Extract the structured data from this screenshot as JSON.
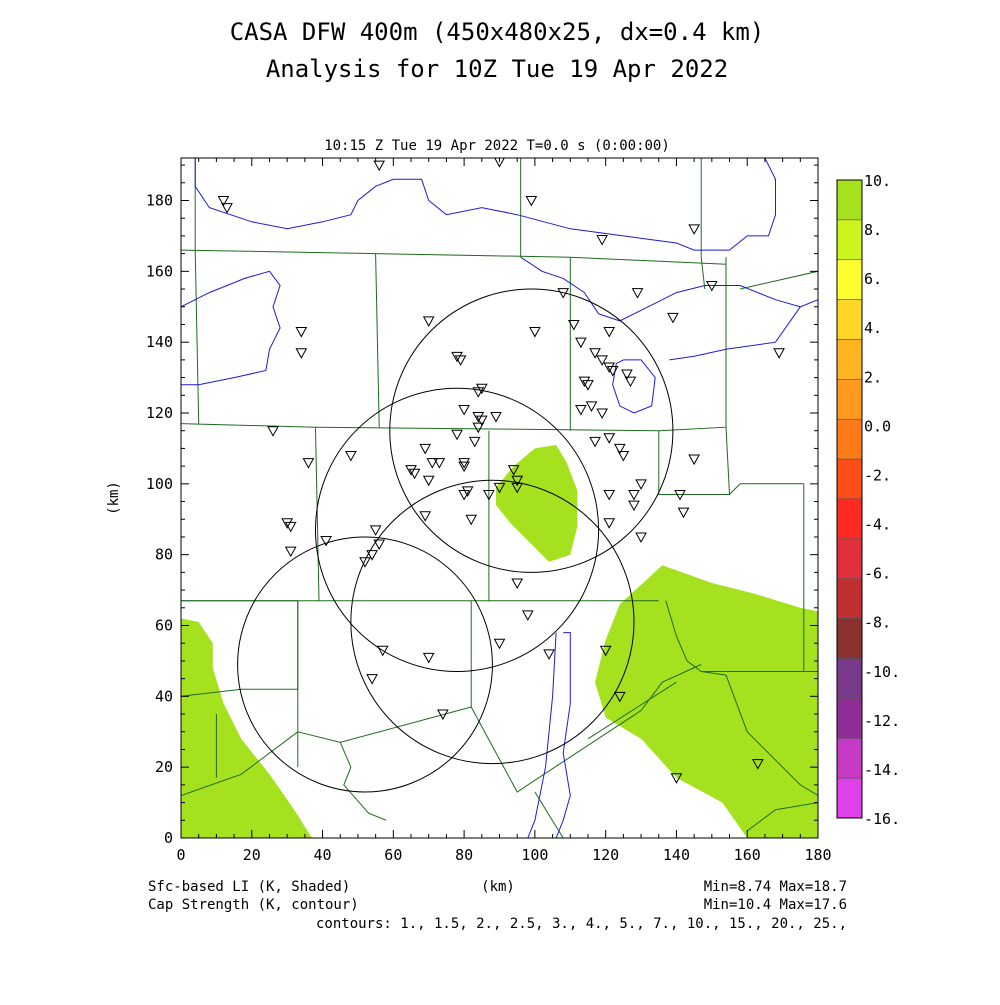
{
  "title_line1": "CASA DFW 400m (450x480x25, dx=0.4 km)",
  "title_line2": "Analysis for 10Z Tue 19 Apr 2022",
  "chart_data": {
    "type": "heatmap",
    "subtitle": "10:15 Z Tue 19 Apr 2022   T=0.0 s (0:00:00)",
    "xlabel": "(km)",
    "ylabel": "(km)",
    "xlim": [
      0,
      180
    ],
    "ylim": [
      0,
      192
    ],
    "x_ticks": [
      0,
      20,
      40,
      60,
      80,
      100,
      120,
      140,
      160,
      180
    ],
    "y_ticks": [
      0,
      20,
      40,
      60,
      80,
      100,
      120,
      140,
      160,
      180
    ],
    "colorbar": {
      "labels": [
        "10.",
        "8.",
        "6.",
        "4.",
        "2.",
        "0.0",
        "-2.",
        "-4.",
        "-6.",
        "-8.",
        "-10.",
        "-12.",
        "-14.",
        "-16."
      ],
      "colors": [
        "#a5e11e",
        "#ccf51e",
        "#ffff30",
        "#ffd628",
        "#ffb422",
        "#ff9a1e",
        "#ff7a1a",
        "#ff4d18",
        "#ff2a22",
        "#e0303c",
        "#c03030",
        "#8c3030",
        "#7a3a8c",
        "#8e2e96",
        "#c63ac6",
        "#e040e8"
      ],
      "tick_values": [
        10,
        8,
        6,
        4,
        2,
        0,
        -2,
        -4,
        -6,
        -8,
        -10,
        -12,
        -14,
        -16
      ]
    },
    "field_shaded": "Sfc-based LI (K, Shaded)",
    "field_contour": "Cap Strength (K, contour)",
    "shaded_stats": "Min=8.74 Max=18.7",
    "contour_stats": "Min=10.4 Max=17.6",
    "contours_text": "contours: 1., 1.5, 2., 2.5, 3., 4., 5., 7., 10., 15., 20., 25.,",
    "shaded_regions": [
      {
        "name": "central",
        "points": [
          [
            89,
            99
          ],
          [
            94,
            105
          ],
          [
            100,
            110
          ],
          [
            106,
            111
          ],
          [
            109,
            106
          ],
          [
            112,
            98
          ],
          [
            112,
            88
          ],
          [
            110,
            80
          ],
          [
            104,
            78
          ],
          [
            98,
            84
          ],
          [
            93,
            89
          ],
          [
            89,
            94
          ]
        ]
      },
      {
        "name": "southeast",
        "points": [
          [
            124,
            66
          ],
          [
            136,
            77
          ],
          [
            150,
            72
          ],
          [
            162,
            69
          ],
          [
            175,
            65
          ],
          [
            180,
            64
          ],
          [
            180,
            0
          ],
          [
            160,
            0
          ],
          [
            153,
            10
          ],
          [
            140,
            17
          ],
          [
            130,
            28
          ],
          [
            120,
            34
          ],
          [
            117,
            44
          ],
          [
            120,
            56
          ]
        ]
      },
      {
        "name": "southwest",
        "points": [
          [
            0,
            62
          ],
          [
            5,
            61
          ],
          [
            9,
            55
          ],
          [
            9,
            48
          ],
          [
            12,
            38
          ],
          [
            17,
            28
          ],
          [
            25,
            18
          ],
          [
            32,
            8
          ],
          [
            37,
            0
          ],
          [
            0,
            0
          ]
        ]
      }
    ],
    "radar_circles": [
      {
        "cx": 99,
        "cy": 115,
        "r": 40
      },
      {
        "cx": 78,
        "cy": 87,
        "r": 40
      },
      {
        "cx": 88,
        "cy": 61,
        "r": 40
      },
      {
        "cx": 52,
        "cy": 49,
        "r": 36
      }
    ],
    "stations": [
      [
        56,
        190
      ],
      [
        90,
        191
      ],
      [
        12,
        180
      ],
      [
        13,
        178
      ],
      [
        99,
        180
      ],
      [
        145,
        172
      ],
      [
        119,
        169
      ],
      [
        150,
        156
      ],
      [
        129,
        154
      ],
      [
        108,
        154
      ],
      [
        139,
        147
      ],
      [
        70,
        146
      ],
      [
        111,
        145
      ],
      [
        121,
        143
      ],
      [
        100,
        143
      ],
      [
        34,
        143
      ],
      [
        34,
        137
      ],
      [
        78,
        136
      ],
      [
        79,
        135
      ],
      [
        113,
        140
      ],
      [
        117,
        137
      ],
      [
        119,
        135
      ],
      [
        121,
        133
      ],
      [
        122,
        132
      ],
      [
        126,
        131
      ],
      [
        127,
        129
      ],
      [
        114,
        129
      ],
      [
        115,
        128
      ],
      [
        85,
        127
      ],
      [
        84,
        126
      ],
      [
        116,
        122
      ],
      [
        113,
        121
      ],
      [
        119,
        120
      ],
      [
        80,
        121
      ],
      [
        84,
        119
      ],
      [
        89,
        119
      ],
      [
        85,
        118
      ],
      [
        84,
        116
      ],
      [
        26,
        115
      ],
      [
        78,
        114
      ],
      [
        83,
        112
      ],
      [
        117,
        112
      ],
      [
        121,
        113
      ],
      [
        124,
        110
      ],
      [
        125,
        108
      ],
      [
        145,
        107
      ],
      [
        36,
        106
      ],
      [
        48,
        108
      ],
      [
        69,
        110
      ],
      [
        71,
        106
      ],
      [
        73,
        106
      ],
      [
        65,
        104
      ],
      [
        66,
        103
      ],
      [
        80,
        106
      ],
      [
        80,
        105
      ],
      [
        94,
        104
      ],
      [
        95,
        101
      ],
      [
        95,
        99
      ],
      [
        90,
        99
      ],
      [
        70,
        101
      ],
      [
        81,
        98
      ],
      [
        80,
        97
      ],
      [
        87,
        97
      ],
      [
        128,
        97
      ],
      [
        130,
        100
      ],
      [
        121,
        97
      ],
      [
        141,
        97
      ],
      [
        128,
        94
      ],
      [
        142,
        92
      ],
      [
        69,
        91
      ],
      [
        82,
        90
      ],
      [
        121,
        89
      ],
      [
        30,
        89
      ],
      [
        31,
        88
      ],
      [
        55,
        87
      ],
      [
        130,
        85
      ],
      [
        56,
        83
      ],
      [
        41,
        84
      ],
      [
        31,
        81
      ],
      [
        54,
        80
      ],
      [
        52,
        78
      ],
      [
        95,
        72
      ],
      [
        98,
        63
      ],
      [
        90,
        55
      ],
      [
        57,
        53
      ],
      [
        70,
        51
      ],
      [
        104,
        52
      ],
      [
        120,
        53
      ],
      [
        54,
        45
      ],
      [
        124,
        40
      ],
      [
        74,
        35
      ],
      [
        140,
        17
      ],
      [
        163,
        21
      ],
      [
        169,
        137
      ]
    ],
    "county_lines": [
      [
        [
          4,
          192
        ],
        [
          4,
          166
        ]
      ],
      [
        [
          0,
          166
        ],
        [
          55,
          165
        ]
      ],
      [
        [
          55,
          165
        ],
        [
          110,
          164
        ],
        [
          154,
          162
        ]
      ],
      [
        [
          154,
          164
        ],
        [
          154,
          162
        ]
      ],
      [
        [
          96,
          192
        ],
        [
          96,
          164
        ]
      ],
      [
        [
          147,
          192
        ],
        [
          147,
          164
        ]
      ],
      [
        [
          147,
          164
        ],
        [
          148,
          155
        ]
      ],
      [
        [
          158,
          155
        ],
        [
          180,
          160
        ]
      ],
      [
        [
          4,
          166
        ],
        [
          5,
          117
        ]
      ],
      [
        [
          0,
          117
        ],
        [
          38,
          116
        ]
      ],
      [
        [
          55,
          165
        ],
        [
          56,
          116
        ]
      ],
      [
        [
          38,
          116
        ],
        [
          135,
          115
        ]
      ],
      [
        [
          110,
          164
        ],
        [
          110,
          115
        ]
      ],
      [
        [
          154,
          162
        ],
        [
          154,
          116
        ],
        [
          135,
          115
        ]
      ],
      [
        [
          135,
          115
        ],
        [
          135,
          97
        ]
      ],
      [
        [
          38,
          116
        ],
        [
          39,
          67
        ]
      ],
      [
        [
          0,
          67
        ],
        [
          135,
          67
        ]
      ],
      [
        [
          87,
          115
        ],
        [
          87,
          67
        ]
      ],
      [
        [
          0,
          67
        ],
        [
          33,
          67
        ]
      ],
      [
        [
          33,
          67
        ],
        [
          33,
          42
        ],
        [
          17,
          42
        ],
        [
          0,
          40
        ]
      ],
      [
        [
          33,
          30
        ],
        [
          17,
          18
        ],
        [
          0,
          12
        ]
      ],
      [
        [
          10,
          35
        ],
        [
          10,
          17
        ]
      ],
      [
        [
          33,
          67
        ],
        [
          33,
          20
        ]
      ],
      [
        [
          33,
          30
        ],
        [
          45,
          27
        ],
        [
          82,
          37
        ]
      ],
      [
        [
          82,
          37
        ],
        [
          95,
          13
        ],
        [
          98,
          15
        ]
      ],
      [
        [
          45,
          27
        ],
        [
          48,
          20
        ],
        [
          46,
          15
        ],
        [
          53,
          7
        ],
        [
          58,
          5
        ]
      ],
      [
        [
          98,
          15
        ],
        [
          130,
          36
        ],
        [
          136,
          44
        ],
        [
          147,
          49
        ]
      ],
      [
        [
          115,
          28
        ],
        [
          140,
          44
        ]
      ],
      [
        [
          82,
          67
        ],
        [
          82,
          37
        ]
      ],
      [
        [
          135,
          97
        ],
        [
          155,
          97
        ],
        [
          158,
          100
        ],
        [
          176,
          100
        ]
      ],
      [
        [
          155,
          97
        ],
        [
          154,
          116
        ]
      ],
      [
        [
          176,
          100
        ],
        [
          176,
          47
        ]
      ],
      [
        [
          176,
          47
        ],
        [
          180,
          47
        ]
      ],
      [
        [
          137,
          67
        ],
        [
          140,
          57
        ],
        [
          143,
          50
        ],
        [
          147,
          47
        ],
        [
          154,
          46
        ],
        [
          160,
          30
        ],
        [
          170,
          20
        ],
        [
          175,
          15
        ],
        [
          180,
          12
        ]
      ],
      [
        [
          160,
          2
        ],
        [
          168,
          8
        ],
        [
          180,
          10
        ]
      ],
      [
        [
          147,
          47
        ],
        [
          176,
          47
        ]
      ],
      [
        [
          100,
          13
        ],
        [
          108,
          0
        ]
      ]
    ],
    "cap_contours": [
      [
        [
          4,
          192
        ],
        [
          4,
          184
        ],
        [
          8,
          178
        ],
        [
          20,
          174
        ],
        [
          30,
          172
        ],
        [
          40,
          174
        ],
        [
          48,
          176
        ],
        [
          50,
          180
        ],
        [
          55,
          184
        ],
        [
          60,
          186
        ],
        [
          68,
          186
        ],
        [
          70,
          180
        ],
        [
          75,
          176
        ],
        [
          85,
          178
        ],
        [
          95,
          176
        ],
        [
          110,
          172
        ],
        [
          125,
          170
        ],
        [
          140,
          168
        ],
        [
          145,
          166
        ],
        [
          155,
          166
        ],
        [
          160,
          170
        ],
        [
          166,
          170
        ],
        [
          168,
          176
        ],
        [
          168,
          186
        ],
        [
          165,
          192
        ]
      ],
      [
        [
          0,
          150
        ],
        [
          8,
          154
        ],
        [
          18,
          158
        ],
        [
          25,
          160
        ],
        [
          28,
          156
        ],
        [
          26,
          150
        ],
        [
          28,
          144
        ],
        [
          25,
          138
        ],
        [
          24,
          132
        ],
        [
          15,
          130
        ],
        [
          5,
          128
        ],
        [
          0,
          128
        ]
      ],
      [
        [
          96,
          164
        ],
        [
          102,
          160
        ],
        [
          108,
          158
        ],
        [
          114,
          154
        ],
        [
          118,
          148
        ],
        [
          124,
          146
        ],
        [
          132,
          150
        ],
        [
          140,
          154
        ],
        [
          148,
          156
        ],
        [
          158,
          156
        ],
        [
          168,
          152
        ],
        [
          175,
          150
        ],
        [
          180,
          152
        ]
      ],
      [
        [
          125,
          135
        ],
        [
          130,
          135
        ],
        [
          134,
          130
        ],
        [
          133,
          122
        ],
        [
          128,
          120
        ],
        [
          124,
          122
        ],
        [
          122,
          128
        ],
        [
          123,
          134
        ],
        [
          125,
          135
        ]
      ],
      [
        [
          108,
          58
        ],
        [
          110,
          58
        ],
        [
          110,
          38
        ],
        [
          108,
          24
        ],
        [
          110,
          12
        ],
        [
          108,
          5
        ],
        [
          106,
          0
        ]
      ],
      [
        [
          106,
          58
        ],
        [
          105,
          40
        ],
        [
          103,
          20
        ],
        [
          100,
          5
        ],
        [
          98,
          0
        ]
      ],
      [
        [
          175,
          150
        ],
        [
          168,
          140
        ],
        [
          154,
          138
        ],
        [
          145,
          136
        ],
        [
          138,
          135
        ]
      ]
    ]
  }
}
